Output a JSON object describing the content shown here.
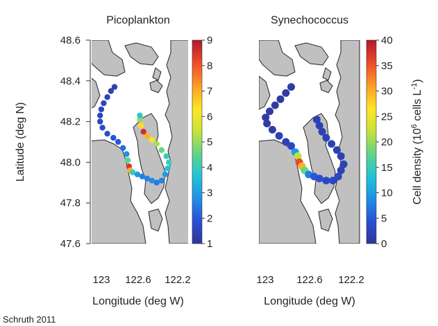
{
  "credit": "Schruth 2011",
  "colors": {
    "land": "#c0c0c0",
    "water": "#ffffff",
    "coast": "#222222",
    "colorscale": [
      "#313695",
      "#2b4fd6",
      "#1f8fe6",
      "#22c4d8",
      "#5fd48a",
      "#c6e23a",
      "#fde725",
      "#fda026",
      "#f0502a",
      "#b2182b"
    ]
  },
  "chart_data": [
    {
      "type": "scatter",
      "title": "Picoplankton",
      "xlabel": "Longitude (deg W)",
      "ylabel": "Latitude (deg N)",
      "xlim": [
        123.0,
        122.2
      ],
      "ylim": [
        47.6,
        48.6
      ],
      "xticks": [
        "123",
        "122.6",
        "122.2"
      ],
      "yticks": [
        "47.6",
        "47.8",
        "48.0",
        "48.2",
        "48.4",
        "48.6"
      ],
      "colorbar": {
        "min": 1,
        "max": 9,
        "ticks": [
          "1",
          "2",
          "3",
          "4",
          "5",
          "6",
          "7",
          "8",
          "9"
        ],
        "label": ""
      },
      "points": [
        {
          "lon": 122.81,
          "lat": 48.37,
          "v": 1.4
        },
        {
          "lon": 122.84,
          "lat": 48.35,
          "v": 1.4
        },
        {
          "lon": 122.87,
          "lat": 48.32,
          "v": 1.5
        },
        {
          "lon": 122.9,
          "lat": 48.29,
          "v": 1.5
        },
        {
          "lon": 122.92,
          "lat": 48.26,
          "v": 1.5
        },
        {
          "lon": 122.93,
          "lat": 48.23,
          "v": 1.6
        },
        {
          "lon": 122.93,
          "lat": 48.2,
          "v": 1.6
        },
        {
          "lon": 122.91,
          "lat": 48.17,
          "v": 1.7
        },
        {
          "lon": 122.87,
          "lat": 48.14,
          "v": 1.8
        },
        {
          "lon": 122.82,
          "lat": 48.12,
          "v": 1.9
        },
        {
          "lon": 122.78,
          "lat": 48.1,
          "v": 2.0
        },
        {
          "lon": 122.74,
          "lat": 48.07,
          "v": 2.3
        },
        {
          "lon": 122.71,
          "lat": 48.04,
          "v": 2.8
        },
        {
          "lon": 122.7,
          "lat": 48.01,
          "v": 4.5
        },
        {
          "lon": 122.69,
          "lat": 47.98,
          "v": 8.5
        },
        {
          "lon": 122.68,
          "lat": 47.96,
          "v": 7.0
        },
        {
          "lon": 122.66,
          "lat": 47.95,
          "v": 4.0
        },
        {
          "lon": 122.62,
          "lat": 47.94,
          "v": 3.0
        },
        {
          "lon": 122.58,
          "lat": 47.93,
          "v": 2.6
        },
        {
          "lon": 122.54,
          "lat": 47.92,
          "v": 2.6
        },
        {
          "lon": 122.5,
          "lat": 47.91,
          "v": 2.8
        },
        {
          "lon": 122.46,
          "lat": 47.9,
          "v": 2.5
        },
        {
          "lon": 122.42,
          "lat": 47.91,
          "v": 2.6
        },
        {
          "lon": 122.39,
          "lat": 47.94,
          "v": 3.0
        },
        {
          "lon": 122.37,
          "lat": 47.97,
          "v": 3.6
        },
        {
          "lon": 122.36,
          "lat": 48.0,
          "v": 4.0
        },
        {
          "lon": 122.38,
          "lat": 48.03,
          "v": 4.0
        },
        {
          "lon": 122.42,
          "lat": 48.06,
          "v": 4.6
        },
        {
          "lon": 122.46,
          "lat": 48.09,
          "v": 5.2
        },
        {
          "lon": 122.5,
          "lat": 48.11,
          "v": 6.2
        },
        {
          "lon": 122.54,
          "lat": 48.13,
          "v": 7.0
        },
        {
          "lon": 122.57,
          "lat": 48.15,
          "v": 8.6
        },
        {
          "lon": 122.59,
          "lat": 48.18,
          "v": 6.5
        },
        {
          "lon": 122.6,
          "lat": 48.21,
          "v": 5.0
        },
        {
          "lon": 122.6,
          "lat": 48.23,
          "v": 3.8
        }
      ]
    },
    {
      "type": "scatter",
      "title": "Synechococcus",
      "xlabel": "Longitude (deg W)",
      "ylabel": "",
      "xlim": [
        123.0,
        122.2
      ],
      "ylim": [
        47.6,
        48.6
      ],
      "xticks": [
        "123",
        "122.6",
        "122.2"
      ],
      "yticks": [],
      "colorbar": {
        "min": 0,
        "max": 40,
        "ticks": [
          "0",
          "5",
          "10",
          "15",
          "20",
          "25",
          "30",
          "35",
          "40"
        ],
        "label_main": "Cell density (10",
        "label_sup1": "6",
        "label_mid": " cells L",
        "label_sup2": "-1",
        "label_end": ")"
      },
      "points": [
        {
          "lon": 122.76,
          "lat": 48.37,
          "v": 1
        },
        {
          "lon": 122.8,
          "lat": 48.34,
          "v": 1
        },
        {
          "lon": 122.84,
          "lat": 48.31,
          "v": 1
        },
        {
          "lon": 122.88,
          "lat": 48.28,
          "v": 1
        },
        {
          "lon": 122.92,
          "lat": 48.25,
          "v": 1
        },
        {
          "lon": 122.95,
          "lat": 48.22,
          "v": 1
        },
        {
          "lon": 122.94,
          "lat": 48.19,
          "v": 1
        },
        {
          "lon": 122.9,
          "lat": 48.16,
          "v": 1
        },
        {
          "lon": 122.85,
          "lat": 48.13,
          "v": 2
        },
        {
          "lon": 122.8,
          "lat": 48.1,
          "v": 2
        },
        {
          "lon": 122.76,
          "lat": 48.08,
          "v": 3
        },
        {
          "lon": 122.73,
          "lat": 48.05,
          "v": 10
        },
        {
          "lon": 122.71,
          "lat": 48.03,
          "v": 22
        },
        {
          "lon": 122.7,
          "lat": 48.0,
          "v": 36
        },
        {
          "lon": 122.68,
          "lat": 47.98,
          "v": 30
        },
        {
          "lon": 122.66,
          "lat": 47.96,
          "v": 18
        },
        {
          "lon": 122.63,
          "lat": 47.94,
          "v": 8
        },
        {
          "lon": 122.59,
          "lat": 47.93,
          "v": 5
        },
        {
          "lon": 122.55,
          "lat": 47.92,
          "v": 4
        },
        {
          "lon": 122.5,
          "lat": 47.91,
          "v": 3
        },
        {
          "lon": 122.45,
          "lat": 47.91,
          "v": 3
        },
        {
          "lon": 122.41,
          "lat": 47.93,
          "v": 3
        },
        {
          "lon": 122.39,
          "lat": 47.96,
          "v": 2
        },
        {
          "lon": 122.37,
          "lat": 47.99,
          "v": 2
        },
        {
          "lon": 122.39,
          "lat": 48.03,
          "v": 2
        },
        {
          "lon": 122.42,
          "lat": 48.06,
          "v": 2
        },
        {
          "lon": 122.46,
          "lat": 48.09,
          "v": 2
        },
        {
          "lon": 122.5,
          "lat": 48.12,
          "v": 2
        },
        {
          "lon": 122.53,
          "lat": 48.15,
          "v": 2
        },
        {
          "lon": 122.55,
          "lat": 48.18,
          "v": 2
        },
        {
          "lon": 122.57,
          "lat": 48.21,
          "v": 2
        }
      ]
    }
  ]
}
